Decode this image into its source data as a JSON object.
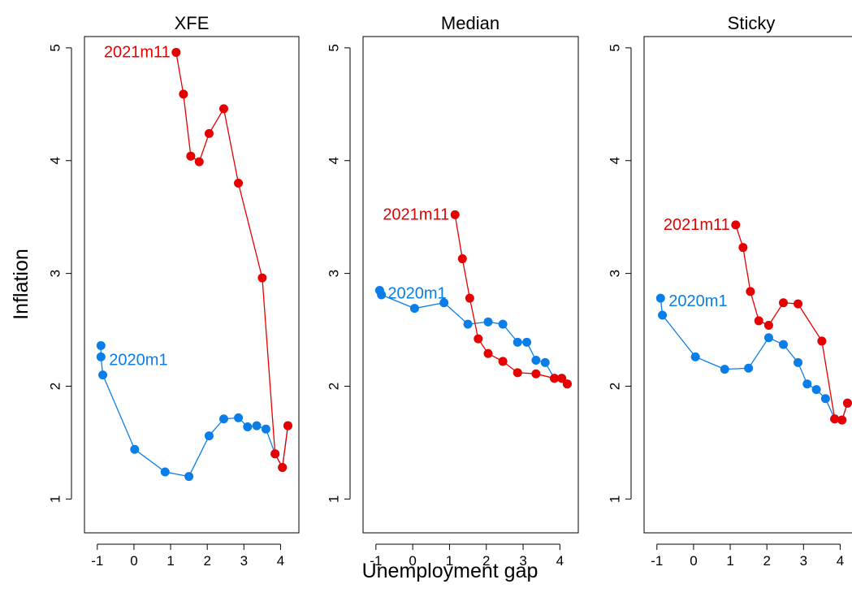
{
  "figure": {
    "ylabel": "Inflation",
    "xlabel": "Unemployment gap"
  },
  "chart_data": [
    {
      "type": "line",
      "title": "XFE",
      "xlim": [
        -1.35,
        4.5
      ],
      "ylim": [
        0.7,
        5.1
      ],
      "xticks": [
        -1,
        0,
        1,
        2,
        3,
        4
      ],
      "yticks": [
        1,
        2,
        3,
        4,
        5
      ],
      "series": [
        {
          "label": "2020m1",
          "color": "#0a7ee8",
          "label_anchor_index": 1,
          "points": [
            [
              -0.9,
              2.36
            ],
            [
              -0.9,
              2.26
            ],
            [
              -0.85,
              2.1
            ],
            [
              0.02,
              1.44
            ],
            [
              0.85,
              1.24
            ],
            [
              1.5,
              1.2
            ],
            [
              2.05,
              1.56
            ],
            [
              2.45,
              1.71
            ],
            [
              2.85,
              1.72
            ],
            [
              3.1,
              1.64
            ],
            [
              3.35,
              1.65
            ],
            [
              3.6,
              1.62
            ],
            [
              3.85,
              1.4
            ],
            [
              4.05,
              1.28
            ],
            [
              4.2,
              1.65
            ]
          ]
        },
        {
          "label": "2021m11",
          "color": "#e60000",
          "label_anchor_index": 0,
          "points": [
            [
              1.15,
              4.96
            ],
            [
              1.35,
              4.59
            ],
            [
              1.55,
              4.04
            ],
            [
              1.78,
              3.99
            ],
            [
              2.05,
              4.24
            ],
            [
              2.45,
              4.46
            ],
            [
              2.85,
              3.8
            ],
            [
              3.5,
              2.96
            ],
            [
              3.85,
              1.4
            ],
            [
              4.05,
              1.28
            ],
            [
              4.2,
              1.65
            ]
          ]
        }
      ]
    },
    {
      "type": "line",
      "title": "Median",
      "xlim": [
        -1.35,
        4.5
      ],
      "ylim": [
        0.7,
        5.1
      ],
      "xticks": [
        -1,
        0,
        1,
        2,
        3,
        4
      ],
      "yticks": [
        1,
        2,
        3,
        4,
        5
      ],
      "series": [
        {
          "label": "2020m1",
          "color": "#0a7ee8",
          "label_anchor_index": 0,
          "points": [
            [
              -0.9,
              2.85
            ],
            [
              -0.85,
              2.81
            ],
            [
              0.05,
              2.69
            ],
            [
              0.85,
              2.74
            ],
            [
              1.5,
              2.55
            ],
            [
              2.05,
              2.57
            ],
            [
              2.45,
              2.55
            ],
            [
              2.85,
              2.39
            ],
            [
              3.1,
              2.39
            ],
            [
              3.35,
              2.23
            ],
            [
              3.6,
              2.21
            ],
            [
              3.85,
              2.07
            ],
            [
              4.05,
              2.07
            ],
            [
              4.2,
              2.02
            ]
          ]
        },
        {
          "label": "2021m11",
          "color": "#e60000",
          "label_anchor_index": 0,
          "points": [
            [
              1.15,
              3.52
            ],
            [
              1.35,
              3.13
            ],
            [
              1.55,
              2.78
            ],
            [
              1.78,
              2.42
            ],
            [
              2.05,
              2.29
            ],
            [
              2.45,
              2.22
            ],
            [
              2.85,
              2.12
            ],
            [
              3.35,
              2.11
            ],
            [
              3.85,
              2.07
            ],
            [
              4.05,
              2.07
            ],
            [
              4.2,
              2.02
            ]
          ]
        }
      ]
    },
    {
      "type": "line",
      "title": "Sticky",
      "xlim": [
        -1.35,
        4.5
      ],
      "ylim": [
        0.7,
        5.1
      ],
      "xticks": [
        -1,
        0,
        1,
        2,
        3,
        4
      ],
      "yticks": [
        1,
        2,
        3,
        4,
        5
      ],
      "series": [
        {
          "label": "2020m1",
          "color": "#0a7ee8",
          "label_anchor_index": 0,
          "points": [
            [
              -0.9,
              2.78
            ],
            [
              -0.85,
              2.63
            ],
            [
              0.05,
              2.26
            ],
            [
              0.85,
              2.15
            ],
            [
              1.5,
              2.16
            ],
            [
              2.05,
              2.43
            ],
            [
              2.45,
              2.37
            ],
            [
              2.85,
              2.21
            ],
            [
              3.1,
              2.02
            ],
            [
              3.35,
              1.97
            ],
            [
              3.6,
              1.89
            ],
            [
              3.85,
              1.71
            ],
            [
              4.05,
              1.7
            ],
            [
              4.2,
              1.85
            ]
          ]
        },
        {
          "label": "2021m11",
          "color": "#e60000",
          "label_anchor_index": 0,
          "points": [
            [
              1.15,
              3.43
            ],
            [
              1.35,
              3.23
            ],
            [
              1.55,
              2.84
            ],
            [
              1.78,
              2.58
            ],
            [
              2.05,
              2.54
            ],
            [
              2.45,
              2.74
            ],
            [
              2.85,
              2.73
            ],
            [
              3.5,
              2.4
            ],
            [
              3.85,
              1.71
            ],
            [
              4.05,
              1.7
            ],
            [
              4.2,
              1.85
            ]
          ]
        }
      ]
    }
  ]
}
